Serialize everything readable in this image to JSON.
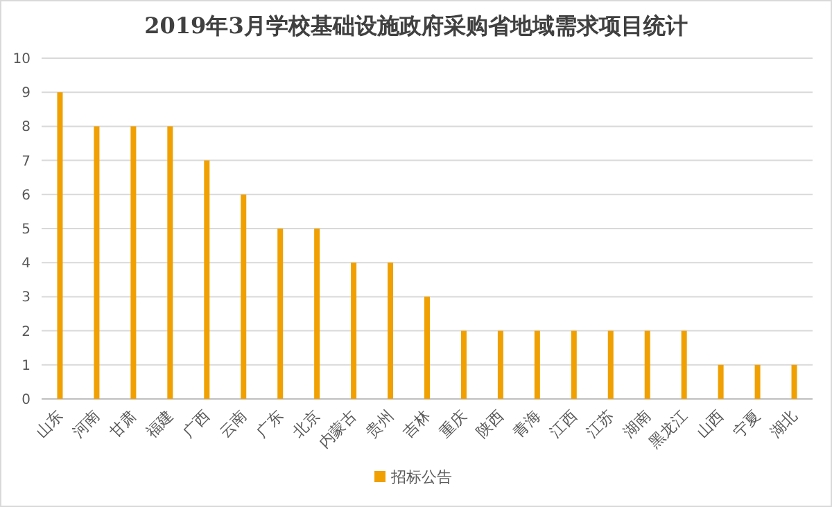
{
  "chart_data": {
    "type": "bar",
    "title": "2019年3月学校基础设施政府采购省地域需求项目统计",
    "categories": [
      "山东",
      "河南",
      "甘肃",
      "福建",
      "广西",
      "云南",
      "广东",
      "北京",
      "内蒙古",
      "贵州",
      "吉林",
      "重庆",
      "陕西",
      "青海",
      "江西",
      "江苏",
      "湖南",
      "黑龙江",
      "山西",
      "宁夏",
      "湖北"
    ],
    "series": [
      {
        "name": "招标公告",
        "color": "#f0a000",
        "values": [
          9,
          8,
          8,
          8,
          7,
          6,
          5,
          5,
          4,
          4,
          3,
          2,
          2,
          2,
          2,
          2,
          2,
          2,
          1,
          1,
          1
        ]
      }
    ],
    "ylim": [
      0,
      10
    ],
    "yticks": [
      0,
      1,
      2,
      3,
      4,
      5,
      6,
      7,
      8,
      9,
      10
    ],
    "grid": "y",
    "legend": "bottom"
  }
}
